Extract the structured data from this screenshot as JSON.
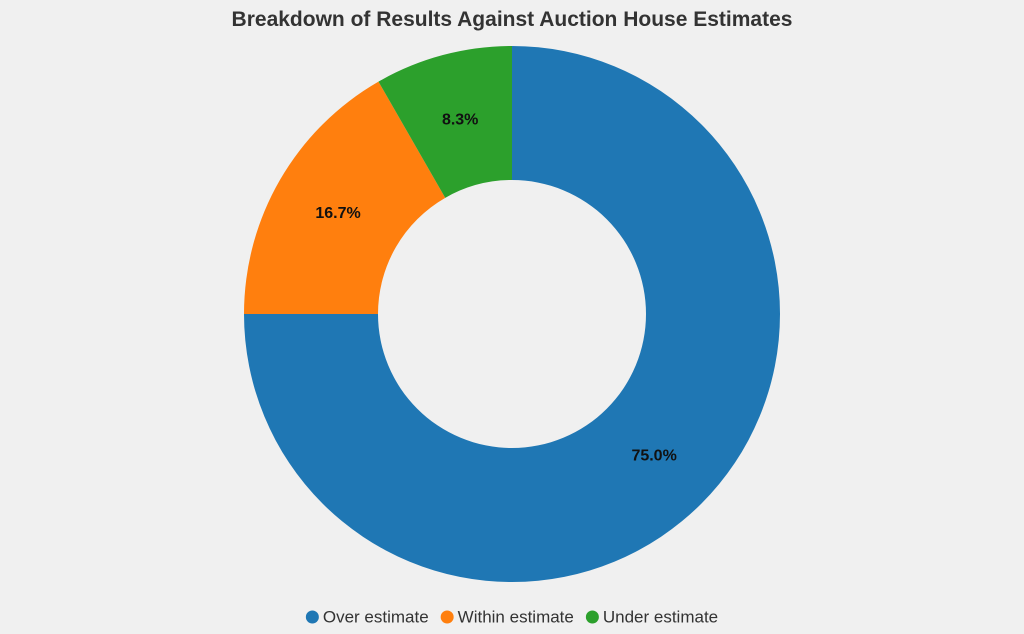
{
  "chart_data": {
    "type": "pie",
    "variant": "donut",
    "title": "Breakdown of Results Against Auction House Estimates",
    "categories": [
      "Over estimate",
      "Within estimate",
      "Under estimate"
    ],
    "values": [
      75.0,
      16.7,
      8.3
    ],
    "labels": [
      "75.0%",
      "16.7%",
      "8.3%"
    ],
    "colors": [
      "#1f77b4",
      "#ff7f0e",
      "#2ca02c"
    ],
    "legend": {
      "placement": "bottom",
      "entries": [
        "Over estimate",
        "Within estimate",
        "Under estimate"
      ]
    }
  }
}
